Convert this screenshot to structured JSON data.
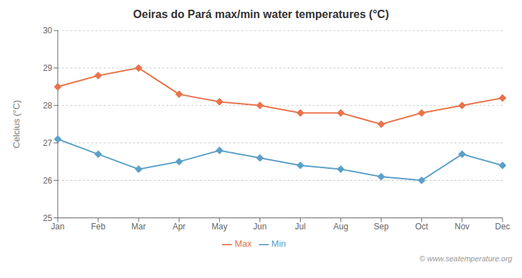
{
  "chart_data": {
    "type": "line",
    "title": "Oeiras do Pará max/min water temperatures (°C)",
    "ylabel": "Celcius (°C)",
    "categories": [
      "Jan",
      "Feb",
      "Mar",
      "Apr",
      "May",
      "Jun",
      "Jul",
      "Aug",
      "Sep",
      "Oct",
      "Nov",
      "Dec"
    ],
    "series": [
      {
        "name": "Max",
        "color": "#e8734a",
        "marker": "diamond",
        "values": [
          28.5,
          28.8,
          29.0,
          28.3,
          28.1,
          28.0,
          27.8,
          27.8,
          27.5,
          27.8,
          28.0,
          28.2
        ]
      },
      {
        "name": "Min",
        "color": "#5aa0c8",
        "marker": "diamond",
        "values": [
          27.1,
          26.7,
          26.3,
          26.5,
          26.8,
          26.6,
          26.4,
          26.3,
          26.1,
          26.0,
          26.7,
          26.4
        ]
      }
    ],
    "ylim": [
      25,
      30
    ],
    "yticks": [
      25,
      26,
      27,
      28,
      29,
      30
    ],
    "grid": true,
    "legend": "bottom",
    "annotations": [
      "© www.seatemperature.org"
    ]
  }
}
